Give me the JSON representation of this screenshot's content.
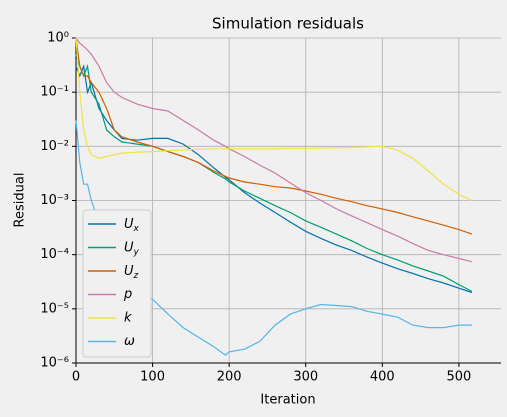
{
  "chart_data": {
    "type": "line",
    "title": "Simulation residuals",
    "xlabel": "Iteration",
    "ylabel": "Residual",
    "log_y": true,
    "grid": true,
    "legend": "lower left",
    "x": [
      0,
      5,
      10,
      15,
      20,
      30,
      40,
      50,
      60,
      80,
      100,
      120,
      140,
      160,
      180,
      195,
      200,
      220,
      240,
      260,
      280,
      300,
      320,
      340,
      360,
      380,
      400,
      420,
      440,
      460,
      480,
      500,
      517
    ],
    "xlim": [
      0,
      555
    ],
    "xticks": [
      0,
      100,
      200,
      300,
      400,
      500
    ],
    "ylim": [
      1e-06,
      1
    ],
    "yticks": [
      {
        "value": 1e-06,
        "label": "10⁻⁶"
      },
      {
        "value": 1e-05,
        "label": "10⁻⁵"
      },
      {
        "value": 0.0001,
        "label": "10⁻⁴"
      },
      {
        "value": 0.001,
        "label": "10⁻³"
      },
      {
        "value": 0.01,
        "label": "10⁻²"
      },
      {
        "value": 0.1,
        "label": "10⁻¹"
      },
      {
        "value": 1,
        "label": "10⁰"
      }
    ],
    "series": [
      {
        "name": "Ux",
        "color": "#0072b2",
        "values": [
          0.3,
          0.2,
          0.3,
          0.1,
          0.15,
          0.05,
          0.03,
          0.02,
          0.014,
          0.013,
          0.014,
          0.014,
          0.011,
          0.007,
          0.004,
          0.0027,
          0.0024,
          0.0014,
          0.0009,
          0.0006,
          0.0004,
          0.00027,
          0.0002,
          0.00015,
          0.00012,
          9e-05,
          7e-05,
          5.5e-05,
          4.5e-05,
          3.6e-05,
          3e-05,
          2.4e-05,
          2e-05
        ]
      },
      {
        "name": "Uy",
        "color": "#009e73",
        "values": [
          0.5,
          0.3,
          0.2,
          0.3,
          0.1,
          0.06,
          0.02,
          0.015,
          0.012,
          0.011,
          0.01,
          0.008,
          0.0065,
          0.005,
          0.0033,
          0.0025,
          0.0022,
          0.0015,
          0.0011,
          0.0008,
          0.0006,
          0.00042,
          0.00032,
          0.00024,
          0.00018,
          0.00013,
          0.0001,
          8e-05,
          6.2e-05,
          5e-05,
          4e-05,
          2.8e-05,
          2.1e-05
        ]
      },
      {
        "name": "Uz",
        "color": "#d55e00",
        "values": [
          1,
          0.3,
          0.2,
          0.2,
          0.15,
          0.1,
          0.05,
          0.02,
          0.015,
          0.012,
          0.01,
          0.008,
          0.0065,
          0.005,
          0.0035,
          0.0028,
          0.0026,
          0.0022,
          0.002,
          0.0018,
          0.0017,
          0.0015,
          0.0013,
          0.0011,
          0.00095,
          0.0008,
          0.0007,
          0.0006,
          0.0005,
          0.00042,
          0.00035,
          0.00029,
          0.00024
        ]
      },
      {
        "name": "p",
        "color": "#cc79a7",
        "values": [
          1,
          0.8,
          0.7,
          0.6,
          0.5,
          0.3,
          0.15,
          0.1,
          0.08,
          0.06,
          0.05,
          0.045,
          0.03,
          0.02,
          0.013,
          0.01,
          0.009,
          0.0065,
          0.0045,
          0.0032,
          0.0021,
          0.0014,
          0.001,
          0.0007,
          0.00052,
          0.00039,
          0.00029,
          0.00022,
          0.00016,
          0.00012,
          0.0001,
          8.5e-05,
          7.4e-05
        ]
      },
      {
        "name": "k",
        "color": "#f0e442",
        "values": [
          1,
          0.1,
          0.02,
          0.01,
          0.007,
          0.006,
          0.0065,
          0.007,
          0.0075,
          0.0078,
          0.008,
          0.0083,
          0.0086,
          0.0088,
          0.009,
          0.009,
          0.009,
          0.009,
          0.009,
          0.009,
          0.0092,
          0.0092,
          0.0093,
          0.0094,
          0.0095,
          0.0098,
          0.01,
          0.0085,
          0.006,
          0.0035,
          0.002,
          0.0013,
          0.001
        ]
      },
      {
        "name": "ω",
        "color": "#56b4e9",
        "values": [
          0.03,
          0.005,
          0.002,
          0.002,
          0.001,
          0.0004,
          0.00015,
          0.0001,
          5e-05,
          2.5e-05,
          1.5e-05,
          8e-06,
          4.5e-06,
          3e-06,
          2e-06,
          1.4e-06,
          1.6e-06,
          1.8e-06,
          2.5e-06,
          5e-06,
          8e-06,
          1e-05,
          1.2e-05,
          1.15e-05,
          1.1e-05,
          9e-06,
          8e-06,
          7e-06,
          5e-06,
          4.5e-06,
          4.5e-06,
          5e-06,
          5e-06
        ]
      }
    ]
  }
}
